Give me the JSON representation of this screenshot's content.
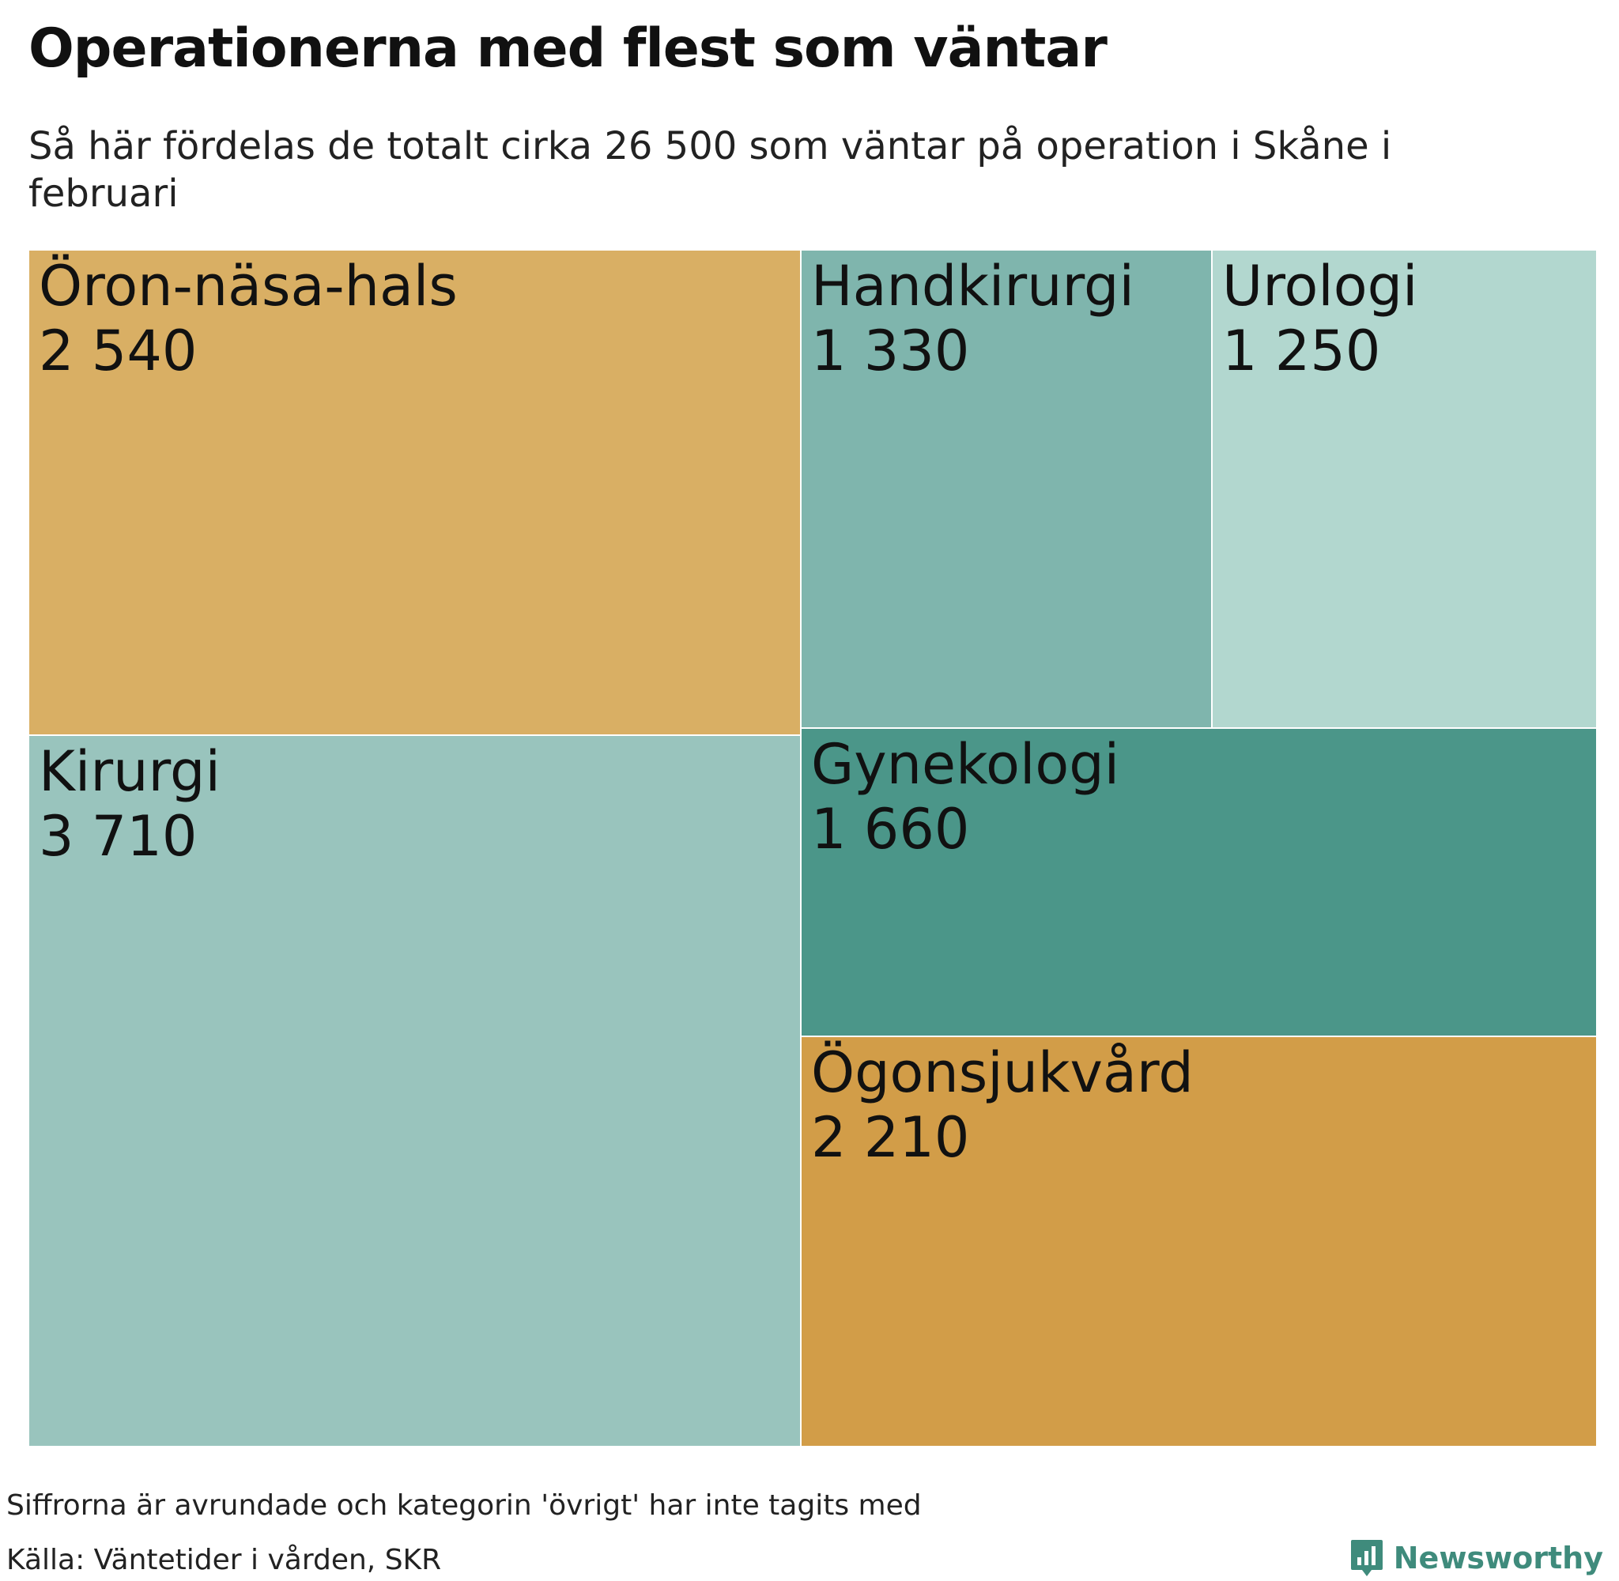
{
  "title": "Operationerna med flest som väntar",
  "subtitle": "Så här fördelas de totalt cirka 26 500 som väntar på operation i Skåne i februari",
  "chart_data": {
    "type": "treemap",
    "categories": [
      "Kirurgi",
      "Öron-näsa-hals",
      "Ögonsjukvård",
      "Gynekologi",
      "Handkirurgi",
      "Urologi"
    ],
    "values": [
      3710,
      2540,
      2210,
      1660,
      1330,
      1250
    ],
    "value_labels": [
      "3 710",
      "2 540",
      "2 210",
      "1 660",
      "1 330",
      "1 250"
    ],
    "colors": {
      "Öron-näsa-hals": "#d9af64",
      "Kirurgi": "#99c4bd",
      "Handkirurgi": "#7fb5ad",
      "Urologi": "#b2d7cf",
      "Gynekologi": "#4b9689",
      "Ögonsjukvård": "#d29d48"
    }
  },
  "footer": {
    "note": "Siffrorna är avrundade och kategorin 'övrigt' har inte tagits med",
    "source": "Källa: Väntetider i vården, SKR",
    "brand": "Newsworthy",
    "brand_color": "#3f8b7c"
  }
}
